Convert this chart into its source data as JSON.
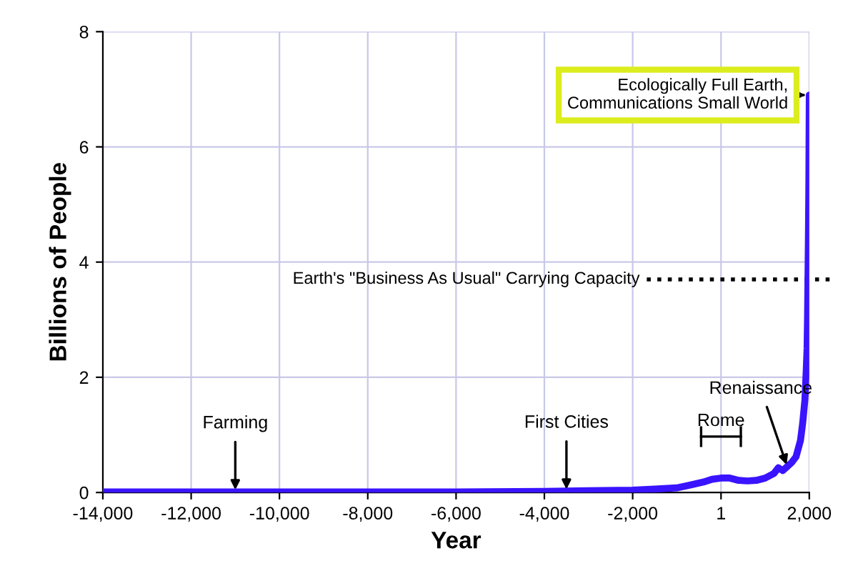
{
  "chart_data": {
    "type": "line",
    "xlabel": "Year",
    "ylabel": "Billions of People",
    "x": [
      -14000,
      -12000,
      -10000,
      -8000,
      -6000,
      -4000,
      -3000,
      -2000,
      -1500,
      -1000,
      -700,
      -400,
      -200,
      0,
      200,
      400,
      600,
      800,
      1000,
      1200,
      1300,
      1400,
      1500,
      1600,
      1700,
      1800,
      1850,
      1900,
      1930,
      1950,
      1960,
      1970,
      1980,
      1990,
      2000
    ],
    "series": [
      {
        "color": "#3a14ff",
        "values": [
          0.01,
          0.01,
          0.01,
          0.01,
          0.01,
          0.02,
          0.03,
          0.04,
          0.06,
          0.08,
          0.13,
          0.18,
          0.23,
          0.25,
          0.25,
          0.21,
          0.2,
          0.21,
          0.25,
          0.33,
          0.43,
          0.38,
          0.45,
          0.52,
          0.62,
          0.9,
          1.2,
          1.6,
          2.1,
          2.5,
          3.0,
          3.7,
          4.4,
          5.3,
          6.9
        ]
      }
    ],
    "xlim": [
      -14000,
      2000
    ],
    "ylim": [
      0,
      8
    ],
    "xticks": [
      {
        "value": -14000,
        "label": "-14,000"
      },
      {
        "value": -12000,
        "label": "-12,000"
      },
      {
        "value": -10000,
        "label": "-10,000"
      },
      {
        "value": -8000,
        "label": "-8,000"
      },
      {
        "value": -6000,
        "label": "-6,000"
      },
      {
        "value": -4000,
        "label": "-4,000"
      },
      {
        "value": -2000,
        "label": "-2,000"
      },
      1,
      {
        "value": 2000,
        "label": "2,000"
      }
    ],
    "yticks": [
      0,
      2,
      4,
      6,
      8
    ],
    "grid": true,
    "line_style": "solid",
    "marker": "none",
    "ref_lines": [
      {
        "axis": "y",
        "value": 3.7,
        "label": "Earth's \"Business As Usual\" Carrying Capacity",
        "color": "#000000",
        "line_style": "dotted"
      }
    ],
    "annotations": [
      {
        "text": "Farming",
        "x": -11000,
        "y": 0.01
      },
      {
        "text": "First Cities",
        "x": -3500,
        "y": 0.02
      },
      {
        "text": "Rome",
        "x": 0,
        "y": 0.25
      },
      {
        "text": "Renaissance",
        "x": 1500,
        "y": 0.45
      },
      {
        "text": "Ecologically Full Earth,\nCommunications Small World",
        "x": 2000,
        "y": 6.9
      }
    ]
  }
}
